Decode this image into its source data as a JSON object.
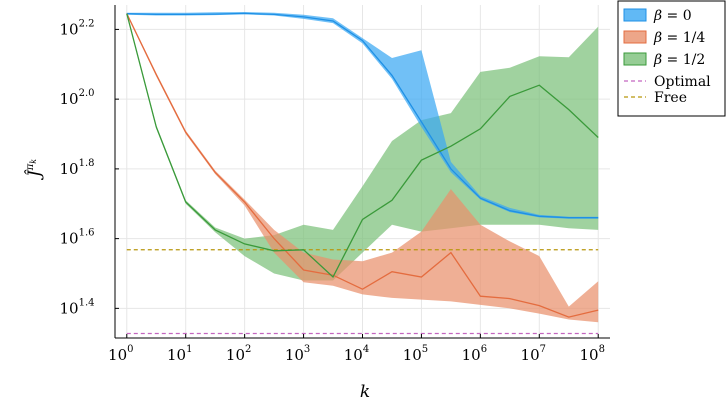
{
  "chart_data": {
    "type": "line",
    "xlabel": "k",
    "ylabel": "Ĵ^{π_k}",
    "xscale": "log10",
    "yscale": "log10",
    "x_ticks": [
      "0",
      "1",
      "2",
      "3",
      "4",
      "5",
      "6",
      "7",
      "8"
    ],
    "y_ticks": [
      "1.4",
      "1.6",
      "1.8",
      "2.0",
      "2.2"
    ],
    "xlim_log10": [
      -0.2,
      8.2
    ],
    "ylim_log10": [
      1.315,
      2.27
    ],
    "grid": true,
    "legend_position": "top-right",
    "colors": {
      "beta0": "#1e90e6",
      "beta0_fill": "#3aa7f2",
      "beta14": "#e46c3f",
      "beta14_fill": "#e9906c",
      "beta12": "#3a9a3a",
      "beta12_fill": "#7cc07a",
      "optimal": "#c466c0",
      "free": "#b8960c"
    },
    "x_log10": [
      0,
      0.5,
      1,
      1.5,
      2,
      2.5,
      3,
      3.5,
      4,
      4.5,
      5,
      5.5,
      6,
      6.5,
      7,
      7.5,
      8
    ],
    "series": [
      {
        "name_pre": "β = ",
        "name_val": "0",
        "color_key": "beta0",
        "mean": [
          2.245,
          2.243,
          2.243,
          2.244,
          2.246,
          2.243,
          2.236,
          2.224,
          2.168,
          2.068,
          1.935,
          1.8,
          1.716,
          1.68,
          1.664,
          1.66,
          1.66
        ],
        "lower": [
          2.242,
          2.24,
          2.24,
          2.241,
          2.243,
          2.24,
          2.23,
          2.218,
          2.16,
          2.058,
          1.92,
          1.79,
          1.712,
          1.676,
          1.661,
          1.657,
          1.657
        ],
        "upper": [
          2.248,
          2.248,
          2.248,
          2.249,
          2.25,
          2.248,
          2.242,
          2.232,
          2.175,
          2.118,
          2.14,
          1.82,
          1.722,
          1.688,
          1.668,
          1.663,
          1.663
        ]
      },
      {
        "name_pre": "β = ",
        "name_val": "1/4",
        "color_key": "beta14",
        "mean": [
          2.245,
          2.07,
          1.905,
          1.79,
          1.705,
          1.6,
          1.51,
          1.495,
          1.455,
          1.505,
          1.49,
          1.56,
          1.435,
          1.428,
          1.408,
          1.375,
          1.395
        ],
        "lower": [
          2.242,
          2.065,
          1.9,
          1.785,
          1.695,
          1.56,
          1.475,
          1.465,
          1.44,
          1.43,
          1.425,
          1.42,
          1.41,
          1.4,
          1.385,
          1.368,
          1.36
        ],
        "upper": [
          2.248,
          2.075,
          1.91,
          1.795,
          1.712,
          1.625,
          1.56,
          1.54,
          1.535,
          1.56,
          1.62,
          1.742,
          1.64,
          1.592,
          1.55,
          1.405,
          1.478
        ]
      },
      {
        "name_pre": "β = ",
        "name_val": "1/2",
        "color_key": "beta12",
        "mean": [
          2.245,
          1.92,
          1.705,
          1.625,
          1.585,
          1.565,
          1.568,
          1.49,
          1.655,
          1.71,
          1.825,
          1.865,
          1.915,
          2.008,
          2.04,
          1.97,
          1.89
        ],
        "lower": [
          2.242,
          1.915,
          1.7,
          1.618,
          1.55,
          1.5,
          1.48,
          1.48,
          1.56,
          1.64,
          1.62,
          1.63,
          1.64,
          1.64,
          1.64,
          1.63,
          1.625
        ],
        "upper": [
          2.248,
          1.925,
          1.71,
          1.632,
          1.6,
          1.61,
          1.64,
          1.625,
          1.75,
          1.88,
          1.94,
          1.96,
          2.078,
          2.09,
          2.123,
          2.12,
          2.208
        ]
      }
    ],
    "hlines": [
      {
        "name": "Optimal",
        "color_key": "optimal",
        "y_log10": 1.328
      },
      {
        "name": "Free",
        "color_key": "free",
        "y_log10": 1.568
      }
    ]
  }
}
